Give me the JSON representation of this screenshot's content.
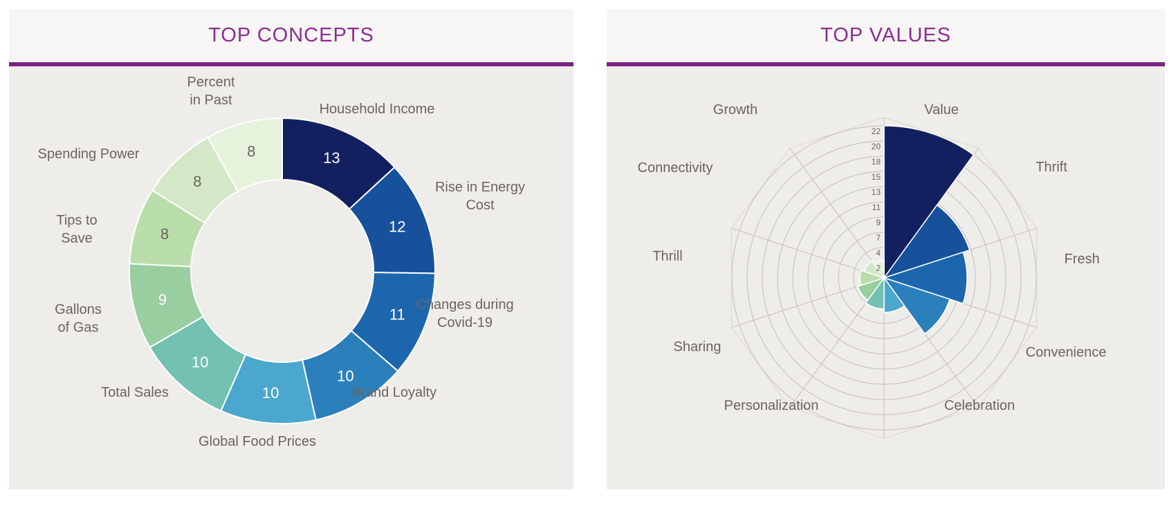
{
  "page": {
    "background": "#FFFFFF"
  },
  "panels": [
    {
      "id": "concepts",
      "title": "TOP CONCEPTS",
      "title_color": "#8C2C92",
      "accent_color": "#7B2284",
      "header_bg": "#F7F6F5",
      "body_bg": "#EFEDEA"
    },
    {
      "id": "values",
      "title": "TOP VALUES",
      "title_color": "#8C2C92",
      "accent_color": "#7B2284",
      "header_bg": "#F7F6F5",
      "body_bg": "#EFEDEA"
    }
  ],
  "chart_data": [
    {
      "type": "pie",
      "variant": "donut",
      "title": "TOP CONCEPTS",
      "start_angle_deg": 0,
      "direction": "clockwise",
      "total": 99,
      "label_color": "#6A645E",
      "segments": [
        {
          "label": "Household Income",
          "label_lines": [
            "Household Income"
          ],
          "value": 13,
          "color": "#132060",
          "value_color": "#FFFFFF"
        },
        {
          "label": "Rise in Energy Cost",
          "label_lines": [
            "Rise in Energy",
            "Cost"
          ],
          "value": 12,
          "color": "#17519C",
          "value_color": "#FFFFFF"
        },
        {
          "label": "Changes during Covid-19",
          "label_lines": [
            "Changes during",
            "Covid-19"
          ],
          "value": 11,
          "color": "#1C66AE",
          "value_color": "#FFFFFF"
        },
        {
          "label": "Brand Loyalty",
          "label_lines": [
            "Brand Loyalty"
          ],
          "value": 10,
          "color": "#2B80BC",
          "value_color": "#FFFFFF"
        },
        {
          "label": "Global Food Prices",
          "label_lines": [
            "Global Food Prices"
          ],
          "value": 10,
          "color": "#4BA7CD",
          "value_color": "#FFFFFF"
        },
        {
          "label": "Total Sales",
          "label_lines": [
            "Total Sales"
          ],
          "value": 10,
          "color": "#72C1B3",
          "value_color": "#FFFFFF"
        },
        {
          "label": "Gallons of Gas",
          "label_lines": [
            "Gallons",
            "of Gas"
          ],
          "value": 9,
          "color": "#98CEA0",
          "value_color": "#FFFFFF"
        },
        {
          "label": "Tips to Save",
          "label_lines": [
            "Tips to",
            "Save"
          ],
          "value": 8,
          "color": "#BADDAC",
          "value_color": "#6A645E"
        },
        {
          "label": "Spending Power",
          "label_lines": [
            "Spending Power"
          ],
          "value": 8,
          "color": "#D4E8C8",
          "value_color": "#6A645E"
        },
        {
          "label": "Percent in Past",
          "label_lines": [
            "Percent",
            "in Past"
          ],
          "value": 8,
          "color": "#E7F2DC",
          "value_color": "#6A645E"
        }
      ]
    },
    {
      "type": "rose",
      "title": "TOP VALUES",
      "start_angle_deg": 0,
      "direction": "clockwise",
      "sector_angle_deg": 36,
      "rmax": 22,
      "ring_ticks": [
        2,
        4,
        7,
        9,
        11,
        13,
        15,
        18,
        20,
        22
      ],
      "grid": true,
      "grid_color": "#C9C5C1",
      "label_color": "#6A645E",
      "tick_color": "#6A645E",
      "categories": [
        "Value",
        "Thrift",
        "Fresh",
        "Convenience",
        "Celebration",
        "Personalization",
        "Sharing",
        "Thrill",
        "Connectivity",
        "Growth"
      ],
      "values": [
        22,
        13,
        12,
        10,
        5,
        4.5,
        4,
        3.5,
        3,
        2.5
      ],
      "colors": [
        "#132060",
        "#17519C",
        "#1C66AE",
        "#2B80BC",
        "#4BA7CD",
        "#72C1B3",
        "#98CEA0",
        "#BADDAC",
        "#D4E8C8",
        "#E7F2DC"
      ]
    }
  ]
}
